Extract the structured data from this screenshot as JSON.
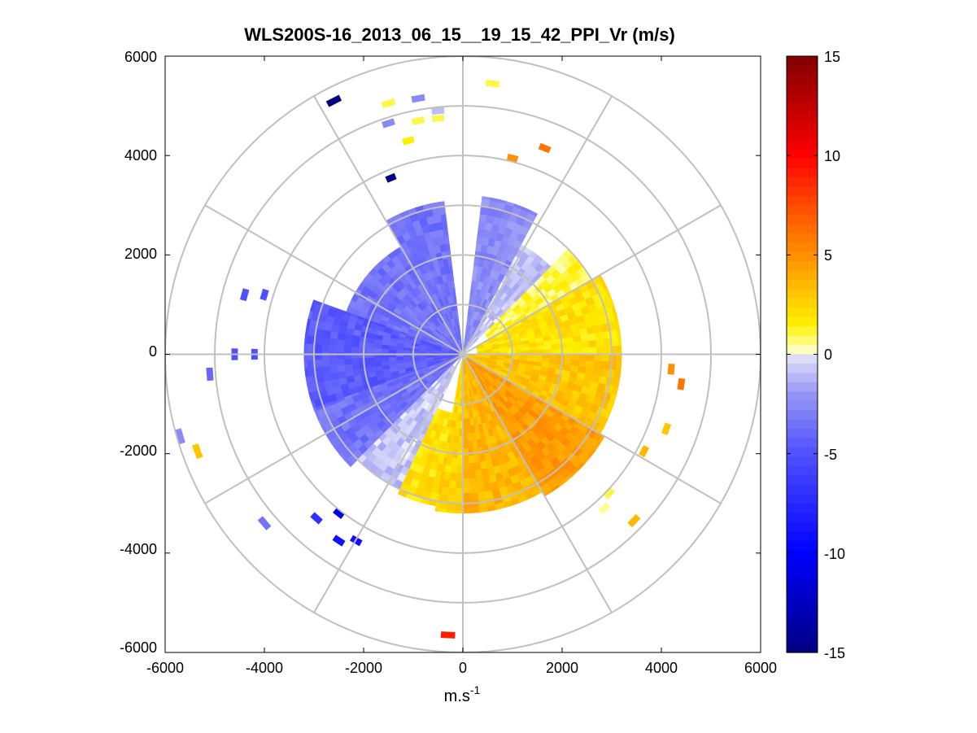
{
  "chart_data": {
    "type": "polar-ppi-heatmap",
    "title": "WLS200S-16_2013_06_15__19_15_42_PPI_Vr (m/s)",
    "xlabel": "m.s",
    "xlabel_superscript": "-1",
    "xlim": [
      -6000,
      6000
    ],
    "ylim": [
      -6000,
      6000
    ],
    "x_ticks": [
      "-6000",
      "-4000",
      "-2000",
      "0",
      "2000",
      "4000",
      "6000"
    ],
    "y_ticks": [
      "6000",
      "4000",
      "2000",
      "0",
      "-2000",
      "-4000",
      "-6000"
    ],
    "range_rings_m": [
      1000,
      2000,
      3000,
      4000,
      5000,
      6000
    ],
    "spokes_deg": [
      0,
      30,
      60,
      90,
      120,
      150,
      180,
      210,
      240,
      270,
      300,
      330
    ],
    "colorbar": {
      "min": -15,
      "max": 15,
      "ticks": [
        "15",
        "10",
        "5",
        "0",
        "-5",
        "-10",
        "-15"
      ],
      "colors": {
        "dark_red": "#800000",
        "red": "#ff0000",
        "orange": "#ff8000",
        "yellow": "#ffff00",
        "white": "#ffffff",
        "light_blue": "#c8c8f0",
        "blue": "#0000ff",
        "navy": "#000080"
      }
    },
    "sectors": [
      {
        "az_from": 355,
        "az_to": 5,
        "range_from": 0,
        "range_to": 0,
        "vr": 0,
        "note": "no data gap north"
      },
      {
        "az_from": 330,
        "az_to": 353,
        "range_from": 0,
        "range_to": 3100,
        "vr": -3.5
      },
      {
        "az_from": 290,
        "az_to": 330,
        "range_from": 0,
        "range_to": 2500,
        "vr": -3.5
      },
      {
        "az_from": 250,
        "az_to": 290,
        "range_from": 0,
        "range_to": 3200,
        "vr": -4.5
      },
      {
        "az_from": 225,
        "az_to": 250,
        "range_from": 0,
        "range_to": 3200,
        "vr": -3.5
      },
      {
        "az_from": 205,
        "az_to": 225,
        "range_from": 300,
        "range_to": 3000,
        "vr": -0.8
      },
      {
        "az_from": 190,
        "az_to": 205,
        "range_from": 1200,
        "range_to": 3100,
        "vr": 2.0
      },
      {
        "az_from": 180,
        "az_to": 190,
        "range_from": 150,
        "range_to": 3200,
        "vr": 2.5
      },
      {
        "az_from": 150,
        "az_to": 180,
        "range_from": 100,
        "range_to": 3200,
        "vr": 3.5
      },
      {
        "az_from": 120,
        "az_to": 150,
        "range_from": 100,
        "range_to": 3300,
        "vr": 4.5
      },
      {
        "az_from": 90,
        "az_to": 120,
        "range_from": 100,
        "range_to": 3200,
        "vr": 3.0
      },
      {
        "az_from": 60,
        "az_to": 90,
        "range_from": 300,
        "range_to": 3200,
        "vr": 2.0
      },
      {
        "az_from": 45,
        "az_to": 60,
        "range_from": 600,
        "range_to": 3000,
        "vr": 1.0
      },
      {
        "az_from": 28,
        "az_to": 45,
        "range_from": 0,
        "range_to": 2500,
        "vr": -0.8
      },
      {
        "az_from": 7,
        "az_to": 28,
        "range_from": 0,
        "range_to": 3200,
        "vr": -2.5
      }
    ],
    "scattered_returns": [
      {
        "x": -2600,
        "y": 5100,
        "vr": -15
      },
      {
        "x": -1500,
        "y": 5050,
        "vr": 1.0
      },
      {
        "x": -900,
        "y": 5150,
        "vr": -2.5
      },
      {
        "x": 600,
        "y": 5450,
        "vr": 1.0
      },
      {
        "x": -1500,
        "y": 4650,
        "vr": -2.5
      },
      {
        "x": -900,
        "y": 4700,
        "vr": 1.0
      },
      {
        "x": -500,
        "y": 4750,
        "vr": 1.0
      },
      {
        "x": -500,
        "y": 4900,
        "vr": -1.0
      },
      {
        "x": -1100,
        "y": 4300,
        "vr": 1.5
      },
      {
        "x": -1450,
        "y": 3550,
        "vr": -15
      },
      {
        "x": 1000,
        "y": 3950,
        "vr": 5.0
      },
      {
        "x": 1650,
        "y": 4150,
        "vr": 6.0
      },
      {
        "x": -4400,
        "y": 1200,
        "vr": -5.0
      },
      {
        "x": -4000,
        "y": 1200,
        "vr": -5.0
      },
      {
        "x": -4600,
        "y": 0,
        "vr": -5.0
      },
      {
        "x": -4200,
        "y": 0,
        "vr": -5.0
      },
      {
        "x": -5100,
        "y": -400,
        "vr": -4.0
      },
      {
        "x": -5700,
        "y": -1650,
        "vr": -2.5
      },
      {
        "x": -5350,
        "y": -1950,
        "vr": 3.0
      },
      {
        "x": -4000,
        "y": -3400,
        "vr": -3.5
      },
      {
        "x": -2950,
        "y": -3300,
        "vr": -7.0
      },
      {
        "x": -2500,
        "y": -3200,
        "vr": -11.0
      },
      {
        "x": -2500,
        "y": -3750,
        "vr": -9.0
      },
      {
        "x": -2150,
        "y": -3750,
        "vr": -9.0
      },
      {
        "x": 4200,
        "y": -300,
        "vr": 5.0
      },
      {
        "x": 4400,
        "y": -600,
        "vr": 6.0
      },
      {
        "x": 4100,
        "y": -1500,
        "vr": 3.0
      },
      {
        "x": 3650,
        "y": -1950,
        "vr": 3.5
      },
      {
        "x": 2950,
        "y": -2800,
        "vr": 1.0
      },
      {
        "x": 2850,
        "y": -3100,
        "vr": 0.5
      },
      {
        "x": 3450,
        "y": -3350,
        "vr": 3.5
      },
      {
        "x": -300,
        "y": -5650,
        "vr": 9.0
      }
    ]
  }
}
